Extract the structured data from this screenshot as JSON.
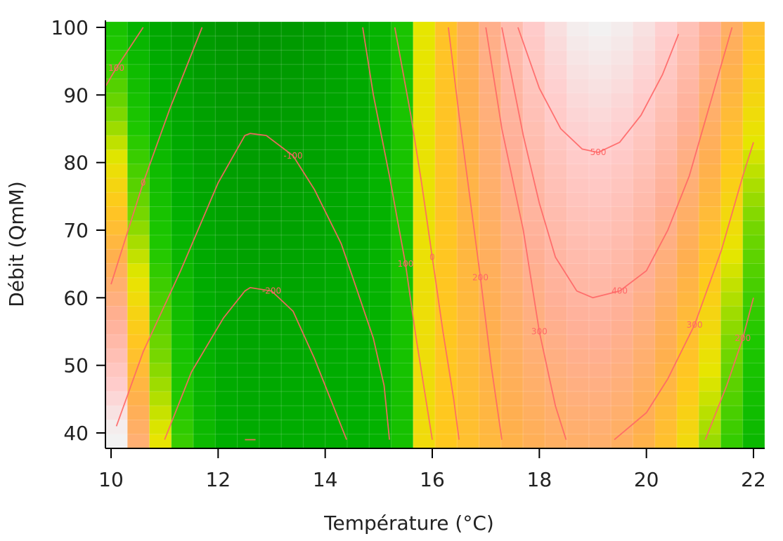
{
  "chart_data": {
    "type": "heatmap",
    "title": "",
    "xlabel": "Température (°C)",
    "ylabel": "Débit (QmM)",
    "xlim": [
      10,
      22
    ],
    "ylim": [
      38,
      100
    ],
    "x_ticks": [
      10,
      12,
      14,
      16,
      18,
      20,
      22
    ],
    "x_tick_labels": [
      "10",
      "12",
      "14",
      "16",
      "18",
      "20",
      "22"
    ],
    "y_ticks": [
      40,
      50,
      60,
      70,
      80,
      90,
      100
    ],
    "y_tick_labels": [
      "40",
      "50",
      "60",
      "70",
      "80",
      "90",
      "100"
    ],
    "grid": true,
    "colors": {
      "low": "#009900",
      "mid": "#e6e600",
      "high": "#ffaa44",
      "peak": "#f2f2f2",
      "contour": "#ff6666"
    },
    "contours": [
      {
        "label": "100",
        "points": [
          [
            10.6,
            100
          ],
          [
            10.1,
            94
          ],
          [
            9.8,
            90
          ]
        ]
      },
      {
        "label": "0",
        "points": [
          [
            11.7,
            100
          ],
          [
            11.1,
            88
          ],
          [
            10.6,
            77
          ],
          [
            10.2,
            67
          ],
          [
            10.0,
            62
          ]
        ]
      },
      {
        "label": "-100",
        "points": [
          [
            10.1,
            41
          ],
          [
            10.6,
            52
          ],
          [
            11.3,
            64
          ],
          [
            12.0,
            77
          ],
          [
            12.5,
            84
          ],
          [
            12.6,
            84.3
          ],
          [
            12.9,
            84
          ],
          [
            13.4,
            81
          ],
          [
            13.8,
            76
          ],
          [
            14.3,
            68
          ],
          [
            14.6,
            61
          ],
          [
            14.9,
            54
          ],
          [
            15.1,
            47
          ],
          [
            15.2,
            39
          ]
        ]
      },
      {
        "label": "-200",
        "points": [
          [
            11.0,
            39
          ],
          [
            11.5,
            49
          ],
          [
            12.1,
            57
          ],
          [
            12.5,
            61
          ],
          [
            12.6,
            61.5
          ],
          [
            13.0,
            61
          ],
          [
            13.4,
            58
          ],
          [
            13.8,
            51
          ],
          [
            14.1,
            45
          ],
          [
            14.4,
            39
          ]
        ]
      },
      {
        "label": "",
        "points": [
          [
            12.5,
            39
          ],
          [
            12.7,
            39
          ]
        ]
      },
      {
        "label": "100",
        "points": [
          [
            14.7,
            100
          ],
          [
            14.9,
            90
          ],
          [
            15.2,
            78
          ],
          [
            15.5,
            65
          ],
          [
            15.7,
            54
          ],
          [
            15.9,
            44
          ],
          [
            16.0,
            39
          ]
        ]
      },
      {
        "label": "0",
        "points": [
          [
            15.3,
            100
          ],
          [
            15.6,
            87
          ],
          [
            15.8,
            77
          ],
          [
            16.0,
            66
          ],
          [
            16.2,
            55
          ],
          [
            16.4,
            45
          ],
          [
            16.5,
            39
          ]
        ]
      },
      {
        "label": "200",
        "points": [
          [
            16.3,
            100
          ],
          [
            16.5,
            87
          ],
          [
            16.7,
            75
          ],
          [
            16.9,
            63
          ],
          [
            17.1,
            50
          ],
          [
            17.3,
            39
          ]
        ]
      },
      {
        "label": "300",
        "points": [
          [
            17.0,
            100
          ],
          [
            17.3,
            85
          ],
          [
            17.7,
            70
          ],
          [
            18.0,
            55
          ],
          [
            18.3,
            44
          ],
          [
            18.5,
            39
          ]
        ]
      },
      {
        "label": "400",
        "points": [
          [
            17.3,
            100
          ],
          [
            17.7,
            84
          ],
          [
            18.0,
            74
          ],
          [
            18.3,
            66
          ],
          [
            18.7,
            61
          ],
          [
            19.0,
            60
          ],
          [
            19.5,
            61
          ],
          [
            20.0,
            64
          ],
          [
            20.4,
            70
          ],
          [
            20.8,
            78
          ],
          [
            21.2,
            89
          ],
          [
            21.6,
            100
          ]
        ]
      },
      {
        "label": "500",
        "points": [
          [
            17.6,
            100
          ],
          [
            18.0,
            91
          ],
          [
            18.4,
            85
          ],
          [
            18.8,
            82
          ],
          [
            19.1,
            81.5
          ],
          [
            19.5,
            83
          ],
          [
            19.9,
            87
          ],
          [
            20.3,
            93
          ],
          [
            20.6,
            99
          ]
        ]
      },
      {
        "label": "300",
        "points": [
          [
            19.4,
            39
          ],
          [
            20.0,
            43
          ],
          [
            20.4,
            48
          ],
          [
            20.9,
            56
          ],
          [
            21.4,
            67
          ],
          [
            21.8,
            78
          ],
          [
            22.0,
            83
          ]
        ]
      },
      {
        "label": "200",
        "points": [
          [
            21.1,
            39
          ],
          [
            21.5,
            47
          ],
          [
            21.8,
            54
          ],
          [
            22.0,
            60
          ]
        ]
      }
    ]
  }
}
